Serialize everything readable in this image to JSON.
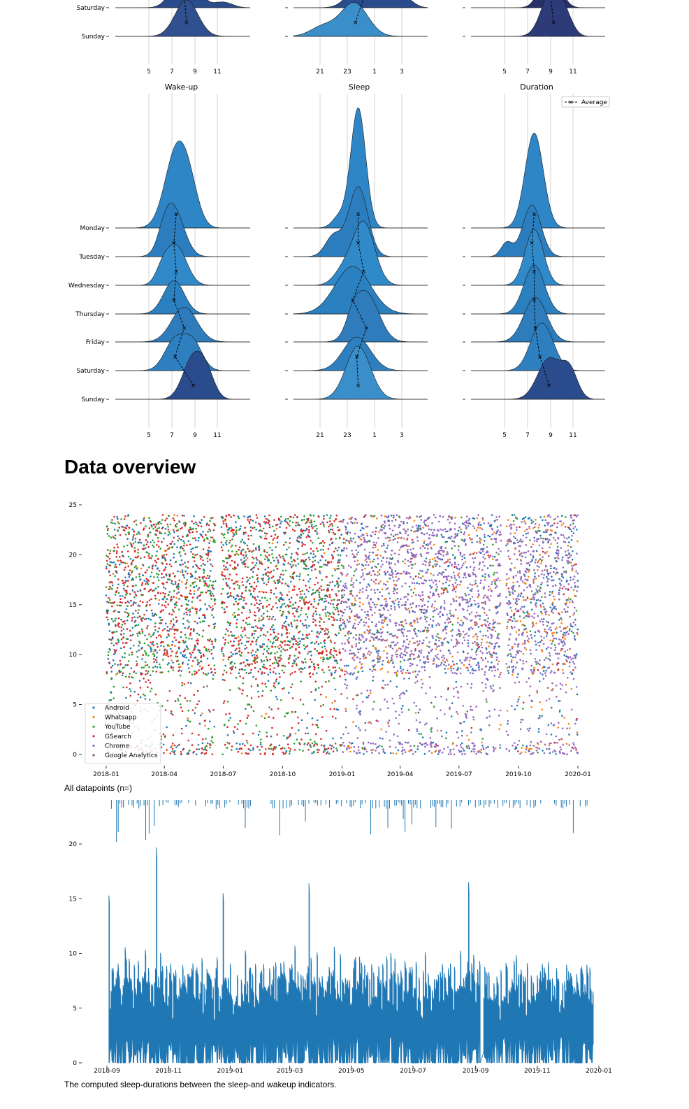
{
  "section_heading": "Data overview",
  "caption_scatter": "All datapoints (n=)",
  "caption_durations": "The computed sleep-durations between the sleep-and wakeup indicators.",
  "chart_data": [
    {
      "type": "ridgeline",
      "panel_titles": [
        "Wake-up",
        "Sleep",
        "Duration"
      ],
      "days_top_partial": [
        "Saturday",
        "Sunday"
      ],
      "x_ticks": [
        [
          "5",
          "7",
          "9",
          "11"
        ],
        [
          "21",
          "23",
          "1",
          "3"
        ],
        [
          "5",
          "7",
          "9",
          "11"
        ]
      ],
      "top_partial_averages": {
        "wakeup": {
          "Saturday": 8.1,
          "Sunday": 8.3
        },
        "sleep": {
          "Saturday": 0.3,
          "Sunday": -0.4
        },
        "duration": {
          "Saturday": 9.0,
          "Sunday": 9.3
        }
      }
    },
    {
      "type": "ridgeline",
      "panel_titles": [
        "Wake-up",
        "Sleep",
        "Duration"
      ],
      "days": [
        "Monday",
        "Tuesday",
        "Wednesday",
        "Thursday",
        "Friday",
        "Saturday",
        "Sunday"
      ],
      "x_ticks": [
        [
          "5",
          "7",
          "9",
          "11"
        ],
        [
          "21",
          "23",
          "1",
          "3"
        ],
        [
          "5",
          "7",
          "9",
          "11"
        ]
      ],
      "legend": [
        {
          "label": "Average",
          "style": "dashed-x",
          "color": "#000000"
        }
      ],
      "averages": {
        "wakeup": [
          7.4,
          7.2,
          7.4,
          7.2,
          8.1,
          7.3,
          8.9
        ],
        "sleep": [
          23.8,
          23.8,
          0.2,
          23.4,
          0.4,
          23.7,
          23.8
        ],
        "duration": [
          7.6,
          7.4,
          7.6,
          7.6,
          7.7,
          8.1,
          8.9
        ]
      },
      "colors": {
        "ridge": "#2d7fbf",
        "ridge_dark": "#2b4c8c"
      }
    },
    {
      "type": "scatter",
      "x_range": [
        "2017-12-20",
        "2020-01-05"
      ],
      "x_ticks": [
        "2018-01",
        "2018-04",
        "2018-07",
        "2018-10",
        "2019-01",
        "2019-04",
        "2019-07",
        "2019-10",
        "2020-01"
      ],
      "ylim": [
        -1,
        25
      ],
      "y_ticks": [
        "0",
        "5",
        "10",
        "15",
        "20",
        "25"
      ],
      "legend_position": "lower-left",
      "series": [
        {
          "name": "Android",
          "color": "#1f77b4"
        },
        {
          "name": "Whatsapp",
          "color": "#ff7f0e"
        },
        {
          "name": "YouTube",
          "color": "#2ca02c"
        },
        {
          "name": "GSearch",
          "color": "#d62728"
        },
        {
          "name": "Chrome",
          "color": "#9467bd"
        },
        {
          "name": "Google Analytics",
          "color": "#8c564b"
        }
      ]
    },
    {
      "type": "line",
      "x_range": [
        "2018-08-22",
        "2020-01-10"
      ],
      "x_ticks": [
        "2018-09",
        "2018-11",
        "2019-01",
        "2019-03",
        "2019-05",
        "2019-07",
        "2019-09",
        "2019-11",
        "2020-01"
      ],
      "ylim": [
        0,
        25
      ],
      "y_ticks": [
        "0",
        "5",
        "10",
        "15",
        "20"
      ],
      "color": "#1f77b4",
      "peaks": [
        {
          "date": "2018-09-03",
          "value": 15.3
        },
        {
          "date": "2018-10-20",
          "value": 19.7
        },
        {
          "date": "2018-12-25",
          "value": 15.5
        },
        {
          "date": "2019-03-20",
          "value": 16.4
        },
        {
          "date": "2019-08-25",
          "value": 16.5
        }
      ]
    }
  ]
}
